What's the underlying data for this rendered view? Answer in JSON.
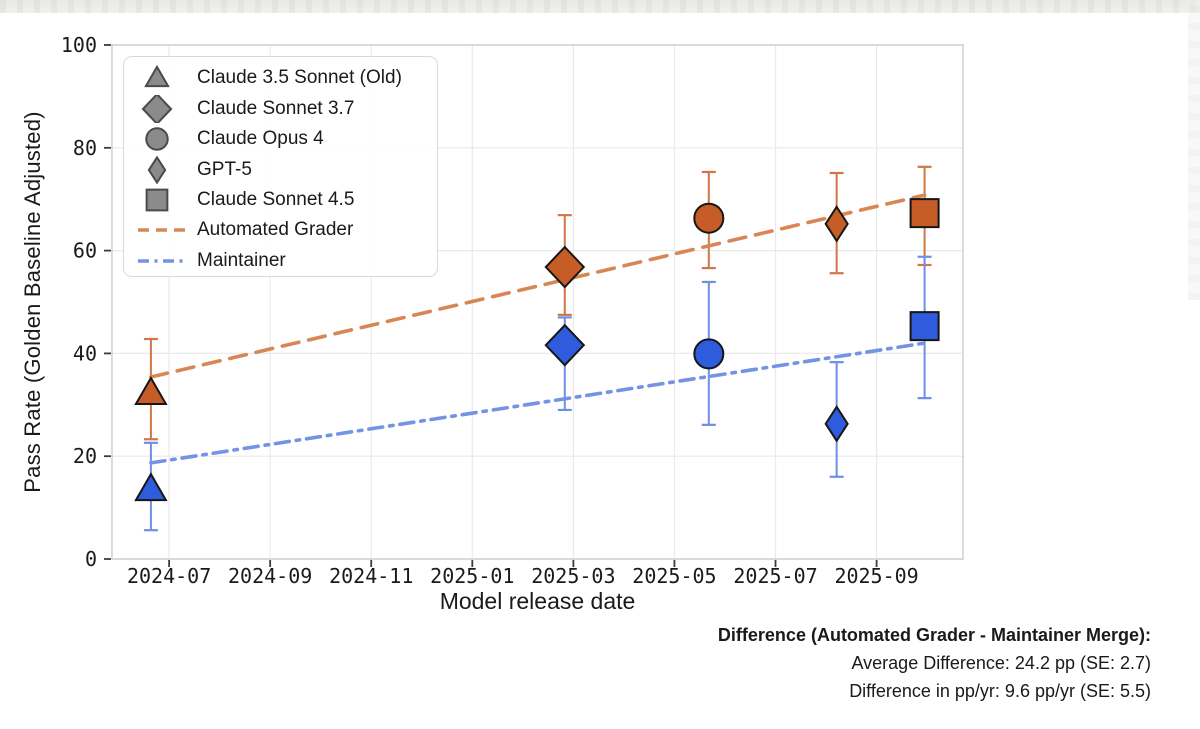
{
  "annotation": {
    "title": "Difference (Automated Grader - Maintainer Merge):",
    "line1": "Average Difference: 24.2 pp (SE: 2.7)",
    "line2": "Difference in pp/yr: 9.6 pp/yr (SE: 5.5)"
  },
  "chart_data": {
    "type": "scatter",
    "title": "",
    "xlabel": "Model release date",
    "ylabel": "Pass Rate (Golden Baseline Adjusted)",
    "ylim": [
      0,
      100
    ],
    "y_ticks": [
      0,
      20,
      40,
      60,
      80,
      100
    ],
    "grid": true,
    "legend_position": "upper left",
    "x_axis": {
      "min_month": 4.87,
      "max_month": 21.71,
      "ticks": [
        {
          "label": "2024-07",
          "month": 6
        },
        {
          "label": "2024-09",
          "month": 8
        },
        {
          "label": "2024-11",
          "month": 10
        },
        {
          "label": "2025-01",
          "month": 12
        },
        {
          "label": "2025-03",
          "month": 14
        },
        {
          "label": "2025-05",
          "month": 16
        },
        {
          "label": "2025-07",
          "month": 18
        },
        {
          "label": "2025-09",
          "month": 20
        }
      ]
    },
    "series_meta": {
      "auto": {
        "label": "Automated Grader",
        "marker_color": "#c65c26",
        "line_color": "#d98655",
        "err_color": "#cf7748",
        "line_style": "dashed"
      },
      "maint": {
        "label": "Maintainer",
        "marker_color": "#2f5cdc",
        "line_color": "#7493e4",
        "err_color": "#6f8fe5",
        "line_style": "dashdot"
      }
    },
    "models": [
      {
        "name": "Claude 3.5 Sonnet (Old)",
        "marker": "triangle",
        "month": 5.64,
        "auto": {
          "value": 32.3,
          "lo": 23.3,
          "hi": 42.8
        },
        "maint": {
          "value": 13.6,
          "lo": 5.6,
          "hi": 22.6
        }
      },
      {
        "name": "Claude Sonnet 3.7",
        "marker": "diamond",
        "month": 13.83,
        "auto": {
          "value": 56.8,
          "lo": 47.5,
          "hi": 66.9
        },
        "maint": {
          "value": 41.6,
          "lo": 29.0,
          "hi": 47.0
        }
      },
      {
        "name": "Claude Opus 4",
        "marker": "circle",
        "month": 16.68,
        "auto": {
          "value": 66.3,
          "lo": 56.6,
          "hi": 75.3
        },
        "maint": {
          "value": 39.9,
          "lo": 26.1,
          "hi": 53.9
        }
      },
      {
        "name": "GPT-5",
        "marker": "thin-diamond",
        "month": 19.21,
        "auto": {
          "value": 65.2,
          "lo": 55.6,
          "hi": 75.1
        },
        "maint": {
          "value": 26.3,
          "lo": 16.0,
          "hi": 38.3
        }
      },
      {
        "name": "Claude Sonnet 4.5",
        "marker": "square",
        "month": 20.95,
        "auto": {
          "value": 67.3,
          "lo": 57.2,
          "hi": 76.3
        },
        "maint": {
          "value": 45.3,
          "lo": 31.3,
          "hi": 58.8
        }
      }
    ],
    "trend_lines": [
      {
        "series": "auto",
        "x1_month": 5.64,
        "y1": 35.4,
        "x2_month": 20.95,
        "y2": 70.8
      },
      {
        "series": "maint",
        "x1_month": 5.64,
        "y1": 18.7,
        "x2_month": 20.95,
        "y2": 42.0
      }
    ]
  },
  "colors": {
    "grid": "#eaeaea",
    "spine": "#cccccc",
    "tick": "#3c3c3c",
    "text": "#1a1a1a",
    "marker_edge": "#161616",
    "legend_marker_fill": "#8b8b8b",
    "legend_marker_edge": "#4a4a4a"
  }
}
